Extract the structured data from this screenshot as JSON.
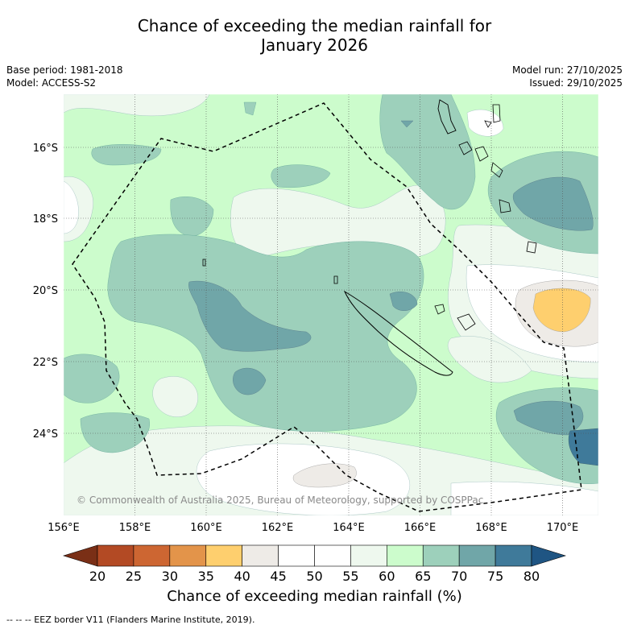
{
  "header": {
    "title_line1": "Chance of exceeding the median rainfall for",
    "title_line2": "January 2026",
    "base_period": "Base period: 1981-2018",
    "model": "Model: ACCESS-S2",
    "model_run": "Model run: 27/10/2025",
    "issued": "Issued: 29/10/2025"
  },
  "map": {
    "lat_labels": [
      "16°S",
      "18°S",
      "20°S",
      "22°S",
      "24°S"
    ],
    "lon_labels": [
      "156°E",
      "158°E",
      "160°E",
      "162°E",
      "164°E",
      "166°E",
      "168°E",
      "170°E"
    ],
    "copyright": "© Commonwealth of Australia 2025, Bureau of Meteorology, supported by COSPPac"
  },
  "colorbar": {
    "ticks": [
      "20",
      "25",
      "30",
      "35",
      "40",
      "45",
      "50",
      "55",
      "60",
      "65",
      "70",
      "75",
      "80"
    ],
    "colors": [
      "#7a2f16",
      "#b34a24",
      "#cd6632",
      "#e3944a",
      "#fecf6e",
      "#eeebe7",
      "#ffffff",
      "#ffffff",
      "#eef8ee",
      "#ccfccc",
      "#9dd0bb",
      "#70a6a8",
      "#3f7a9a",
      "#1f5583"
    ],
    "title": "Chance of exceeding median rainfall (%)"
  },
  "footnote": "-- -- -- EEZ border V11 (Flanders Marine Institute, 2019)."
}
